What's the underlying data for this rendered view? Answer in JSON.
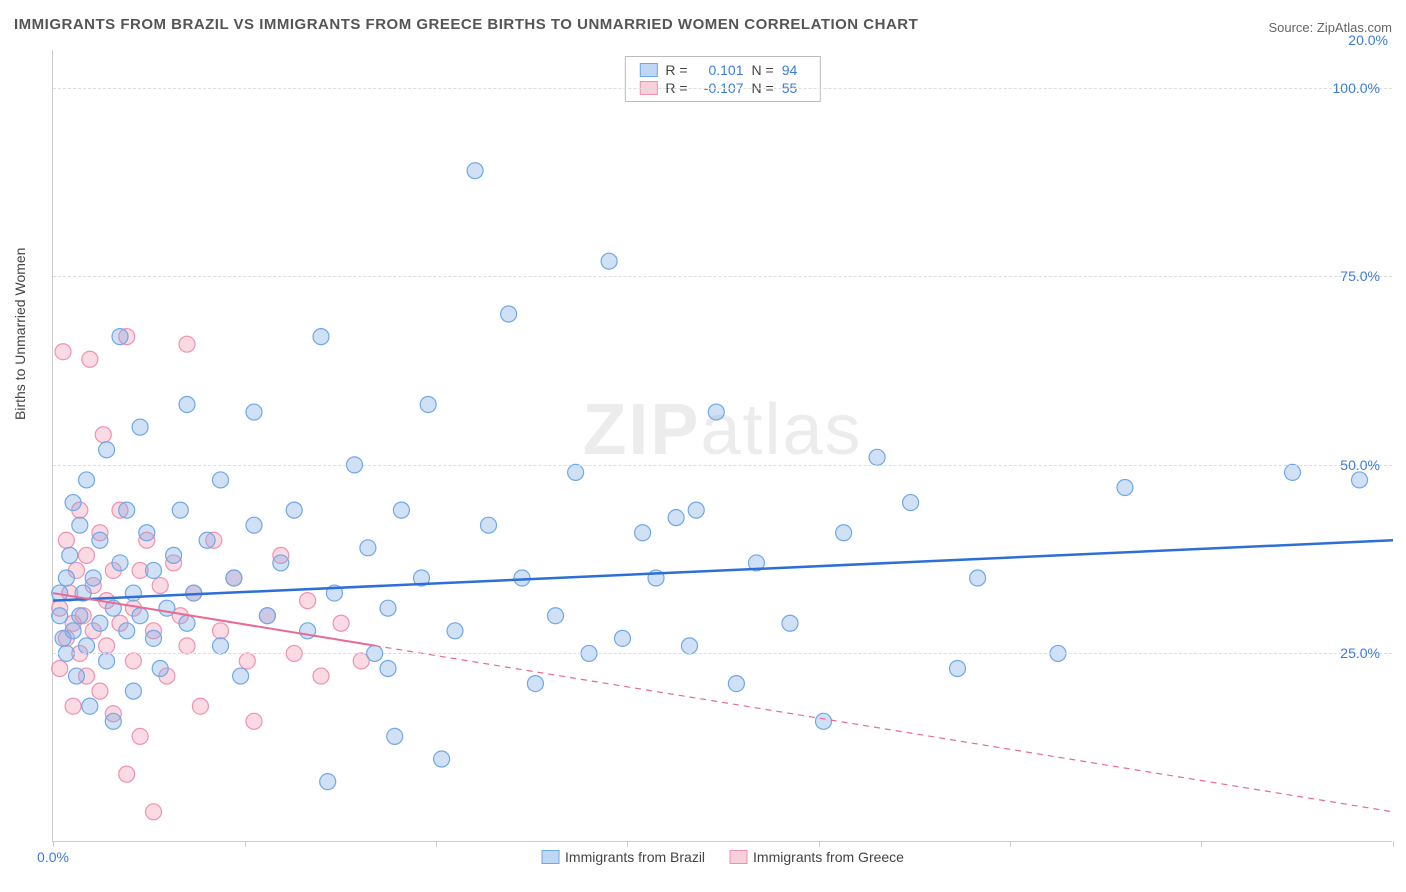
{
  "title": "IMMIGRANTS FROM BRAZIL VS IMMIGRANTS FROM GREECE BIRTHS TO UNMARRIED WOMEN CORRELATION CHART",
  "source": "Source: ZipAtlas.com",
  "y_axis_label": "Births to Unmarried Women",
  "watermark_bold": "ZIP",
  "watermark_light": "atlas",
  "chart": {
    "type": "scatter",
    "xlim": [
      0,
      20
    ],
    "ylim": [
      0,
      105
    ],
    "x_ticks": [
      0,
      2.86,
      5.71,
      8.57,
      11.43,
      14.29,
      17.14,
      20
    ],
    "x_tick_labels_shown": {
      "0": "0.0%",
      "20": "20.0%"
    },
    "y_gridlines": [
      25,
      50,
      75,
      100
    ],
    "y_tick_labels": {
      "25": "25.0%",
      "50": "50.0%",
      "75": "75.0%",
      "100": "100.0%"
    },
    "background_color": "#ffffff",
    "grid_color": "#dddddd",
    "axis_color": "#cccccc",
    "tick_label_color": "#3b7dd8"
  },
  "series": [
    {
      "name": "Immigrants from Brazil",
      "color_fill": "rgba(120,170,230,0.35)",
      "color_stroke": "#6fa8e8",
      "swatch_fill": "#bdd7f5",
      "swatch_border": "#6fa8e8",
      "trend_color": "#2d6fd6",
      "trend_width": 2.5,
      "trend_dash": "",
      "marker_r": 8,
      "R": "0.101",
      "N": "94",
      "trend": {
        "y_at_x0": 32,
        "y_at_xmax": 40
      },
      "points": [
        [
          0.1,
          33
        ],
        [
          0.1,
          30
        ],
        [
          0.15,
          27
        ],
        [
          0.2,
          35
        ],
        [
          0.2,
          25
        ],
        [
          0.25,
          38
        ],
        [
          0.3,
          28
        ],
        [
          0.3,
          45
        ],
        [
          0.35,
          22
        ],
        [
          0.4,
          30
        ],
        [
          0.4,
          42
        ],
        [
          0.45,
          33
        ],
        [
          0.5,
          26
        ],
        [
          0.5,
          48
        ],
        [
          0.55,
          18
        ],
        [
          0.6,
          35
        ],
        [
          0.7,
          29
        ],
        [
          0.7,
          40
        ],
        [
          0.8,
          24
        ],
        [
          0.8,
          52
        ],
        [
          0.9,
          31
        ],
        [
          0.9,
          16
        ],
        [
          1.0,
          37
        ],
        [
          1.0,
          67
        ],
        [
          1.1,
          28
        ],
        [
          1.1,
          44
        ],
        [
          1.2,
          33
        ],
        [
          1.2,
          20
        ],
        [
          1.3,
          30
        ],
        [
          1.3,
          55
        ],
        [
          1.4,
          41
        ],
        [
          1.5,
          27
        ],
        [
          1.5,
          36
        ],
        [
          1.6,
          23
        ],
        [
          1.7,
          31
        ],
        [
          1.8,
          38
        ],
        [
          1.9,
          44
        ],
        [
          2.0,
          29
        ],
        [
          2.0,
          58
        ],
        [
          2.1,
          33
        ],
        [
          2.3,
          40
        ],
        [
          2.5,
          26
        ],
        [
          2.5,
          48
        ],
        [
          2.7,
          35
        ],
        [
          2.8,
          22
        ],
        [
          3.0,
          42
        ],
        [
          3.0,
          57
        ],
        [
          3.2,
          30
        ],
        [
          3.4,
          37
        ],
        [
          3.6,
          44
        ],
        [
          3.8,
          28
        ],
        [
          4.0,
          67
        ],
        [
          4.1,
          8
        ],
        [
          4.2,
          33
        ],
        [
          4.5,
          50
        ],
        [
          4.7,
          39
        ],
        [
          4.8,
          25
        ],
        [
          5.0,
          31
        ],
        [
          5.0,
          23
        ],
        [
          5.1,
          14
        ],
        [
          5.2,
          44
        ],
        [
          5.5,
          35
        ],
        [
          5.6,
          58
        ],
        [
          5.8,
          11
        ],
        [
          6.0,
          28
        ],
        [
          6.3,
          89
        ],
        [
          6.5,
          42
        ],
        [
          6.8,
          70
        ],
        [
          7.0,
          35
        ],
        [
          7.2,
          21
        ],
        [
          7.5,
          30
        ],
        [
          7.8,
          49
        ],
        [
          8.0,
          25
        ],
        [
          8.3,
          77
        ],
        [
          8.5,
          27
        ],
        [
          8.8,
          41
        ],
        [
          9.0,
          35
        ],
        [
          9.3,
          43
        ],
        [
          9.5,
          26
        ],
        [
          9.6,
          44
        ],
        [
          9.9,
          57
        ],
        [
          10.2,
          21
        ],
        [
          10.5,
          37
        ],
        [
          11.0,
          29
        ],
        [
          11.5,
          16
        ],
        [
          11.8,
          41
        ],
        [
          12.3,
          51
        ],
        [
          12.8,
          45
        ],
        [
          13.5,
          23
        ],
        [
          13.8,
          35
        ],
        [
          15.0,
          25
        ],
        [
          16.0,
          47
        ],
        [
          18.5,
          49
        ],
        [
          19.5,
          48
        ]
      ]
    },
    {
      "name": "Immigrants from Greece",
      "color_fill": "rgba(240,150,175,0.35)",
      "color_stroke": "#f092af",
      "swatch_fill": "#f7d0dc",
      "swatch_border": "#f092af",
      "trend_color": "#e86b94",
      "trend_width": 2,
      "trend_dash": "6,5",
      "trend_solid_until_x": 4.8,
      "marker_r": 8,
      "R": "-0.107",
      "N": "55",
      "trend": {
        "y_at_x0": 33,
        "y_at_xmax": 4
      },
      "points": [
        [
          0.1,
          31
        ],
        [
          0.1,
          23
        ],
        [
          0.15,
          65
        ],
        [
          0.2,
          27
        ],
        [
          0.2,
          40
        ],
        [
          0.25,
          33
        ],
        [
          0.3,
          18
        ],
        [
          0.3,
          29
        ],
        [
          0.35,
          36
        ],
        [
          0.4,
          25
        ],
        [
          0.4,
          44
        ],
        [
          0.45,
          30
        ],
        [
          0.5,
          22
        ],
        [
          0.5,
          38
        ],
        [
          0.55,
          64
        ],
        [
          0.6,
          28
        ],
        [
          0.6,
          34
        ],
        [
          0.7,
          20
        ],
        [
          0.7,
          41
        ],
        [
          0.75,
          54
        ],
        [
          0.8,
          26
        ],
        [
          0.8,
          32
        ],
        [
          0.9,
          17
        ],
        [
          0.9,
          36
        ],
        [
          1.0,
          29
        ],
        [
          1.0,
          44
        ],
        [
          1.1,
          67
        ],
        [
          1.1,
          9
        ],
        [
          1.2,
          31
        ],
        [
          1.2,
          24
        ],
        [
          1.3,
          36
        ],
        [
          1.3,
          14
        ],
        [
          1.4,
          40
        ],
        [
          1.5,
          28
        ],
        [
          1.5,
          4
        ],
        [
          1.6,
          34
        ],
        [
          1.7,
          22
        ],
        [
          1.8,
          37
        ],
        [
          1.9,
          30
        ],
        [
          2.0,
          26
        ],
        [
          2.0,
          66
        ],
        [
          2.1,
          33
        ],
        [
          2.2,
          18
        ],
        [
          2.4,
          40
        ],
        [
          2.5,
          28
        ],
        [
          2.7,
          35
        ],
        [
          2.9,
          24
        ],
        [
          3.0,
          16
        ],
        [
          3.2,
          30
        ],
        [
          3.4,
          38
        ],
        [
          3.6,
          25
        ],
        [
          3.8,
          32
        ],
        [
          4.0,
          22
        ],
        [
          4.3,
          29
        ],
        [
          4.6,
          24
        ]
      ]
    }
  ],
  "stats_box": {
    "r_label": "R =",
    "n_label": "N ="
  },
  "bottom_legend": {
    "items": [
      "Immigrants from Brazil",
      "Immigrants from Greece"
    ]
  }
}
